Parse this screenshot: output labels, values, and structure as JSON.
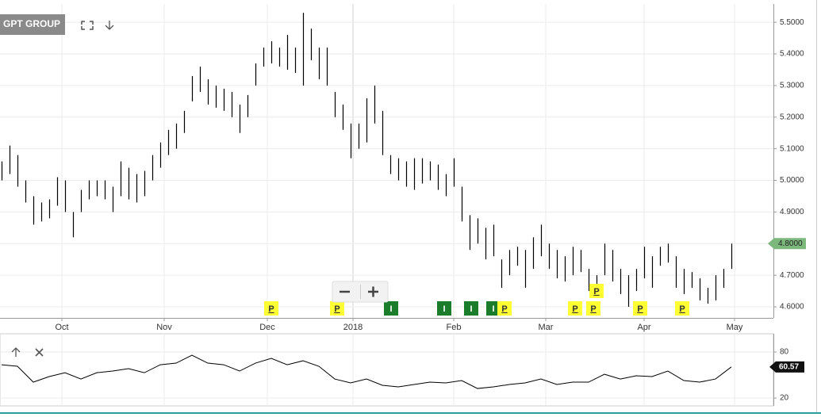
{
  "chart_data": [
    {
      "type": "ohlc",
      "title": "GPT GROUP",
      "high": [
        5.06,
        5.11,
        5.08,
        5.0,
        4.95,
        4.93,
        4.94,
        5.01,
        5.0,
        4.9,
        4.97,
        5.0,
        5.0,
        5.0,
        4.98,
        5.06,
        5.04,
        5.02,
        5.03,
        5.08,
        5.12,
        5.16,
        5.18,
        5.22,
        5.33,
        5.36,
        5.32,
        5.3,
        5.29,
        5.28,
        5.24,
        5.27,
        5.37,
        5.42,
        5.44,
        5.42,
        5.46,
        5.42,
        5.53,
        5.48,
        5.42,
        5.42,
        5.28,
        5.24,
        5.18,
        5.18,
        5.26,
        5.3,
        5.22,
        5.08,
        5.07,
        5.06,
        5.07,
        5.07,
        5.06,
        5.05,
        5.02,
        5.07,
        4.98,
        4.89,
        4.88,
        4.85,
        4.86,
        4.75,
        4.78,
        4.79,
        4.78,
        4.82,
        4.86,
        4.8,
        4.78,
        4.76,
        4.79,
        4.78,
        4.72,
        4.7,
        4.8,
        4.78,
        4.72,
        4.7,
        4.72,
        4.79,
        4.76,
        4.79,
        4.8,
        4.76,
        4.72,
        4.71,
        4.69,
        4.66,
        4.7,
        4.72,
        4.8
      ],
      "low": [
        5.0,
        5.02,
        4.98,
        4.93,
        4.86,
        4.87,
        4.88,
        4.92,
        4.9,
        4.82,
        4.9,
        4.94,
        4.95,
        4.94,
        4.9,
        4.95,
        4.94,
        4.93,
        4.95,
        5.0,
        5.04,
        5.08,
        5.1,
        5.15,
        5.25,
        5.28,
        5.24,
        5.23,
        5.22,
        5.2,
        5.15,
        5.2,
        5.3,
        5.36,
        5.37,
        5.36,
        5.35,
        5.34,
        5.3,
        5.38,
        5.32,
        5.3,
        5.2,
        5.16,
        5.07,
        5.1,
        5.12,
        5.18,
        5.08,
        5.02,
        5.0,
        4.98,
        4.97,
        4.99,
        5.0,
        4.97,
        4.95,
        4.98,
        4.87,
        4.78,
        4.8,
        4.75,
        4.76,
        4.66,
        4.7,
        4.73,
        4.66,
        4.72,
        4.76,
        4.72,
        4.69,
        4.68,
        4.7,
        4.71,
        4.65,
        4.63,
        4.7,
        4.68,
        4.64,
        4.6,
        4.65,
        4.69,
        4.66,
        4.73,
        4.74,
        4.66,
        4.64,
        4.66,
        4.62,
        4.61,
        4.62,
        4.66,
        4.72
      ],
      "xlim": [
        -0.2,
        97.3
      ],
      "xticks": [
        {
          "value": 7.6,
          "label": "Oct"
        },
        {
          "value": 20.5,
          "label": "Nov"
        },
        {
          "value": 33.5,
          "label": "Dec"
        },
        {
          "value": 44.3,
          "label": "2018"
        },
        {
          "value": 57.0,
          "label": "Feb"
        },
        {
          "value": 68.6,
          "label": "Mar"
        },
        {
          "value": 81.0,
          "label": "Apr"
        },
        {
          "value": 92.4,
          "label": "May"
        }
      ],
      "ylim": [
        4.565,
        5.558
      ],
      "yticks": [
        {
          "value": 4.6,
          "label": "4.6000"
        },
        {
          "value": 4.7,
          "label": "4.7000"
        },
        {
          "value": 4.8,
          "label": "4.8000"
        },
        {
          "value": 4.9,
          "label": "4.9000"
        },
        {
          "value": 5.0,
          "label": "5.0000"
        },
        {
          "value": 5.1,
          "label": "5.1000"
        },
        {
          "value": 5.2,
          "label": "5.2000"
        },
        {
          "value": 5.3,
          "label": "5.3000"
        },
        {
          "value": 5.4,
          "label": "5.4000"
        },
        {
          "value": 5.5,
          "label": "5.5000"
        }
      ],
      "last_price": {
        "value": 4.8,
        "label": "4.8000"
      },
      "color": "#000000",
      "grid": true,
      "events": [
        {
          "label": "P",
          "x": 34,
          "color": "#ffff33"
        },
        {
          "label": "P",
          "x": 42.3,
          "color": "#ffff33"
        },
        {
          "label": "I",
          "x": 49.1,
          "color": "#1b7d2c"
        },
        {
          "label": "I",
          "x": 55.8,
          "color": "#1b7d2c"
        },
        {
          "label": "I",
          "x": 59.2,
          "color": "#1b7d2c"
        },
        {
          "label": "I",
          "x": 62,
          "color": "#1b7d2c"
        },
        {
          "label": "P",
          "x": 63.4,
          "color": "#ffff33"
        },
        {
          "label": "P",
          "x": 72.3,
          "color": "#ffff33"
        },
        {
          "label": "P",
          "x": 74.6,
          "color": "#ffff33"
        },
        {
          "label": "P",
          "x": 75,
          "color": "#ffff33"
        },
        {
          "label": "P",
          "x": 80.5,
          "color": "#ffff33"
        },
        {
          "label": "P",
          "x": 85.8,
          "color": "#ffff33"
        }
      ]
    },
    {
      "type": "line",
      "x": [
        0,
        2,
        4,
        6,
        8,
        10,
        12,
        14,
        16,
        18,
        20,
        22,
        24,
        26,
        28,
        30,
        32,
        34,
        36,
        38,
        40,
        42,
        44,
        46,
        48,
        50,
        52,
        54,
        56,
        58,
        60,
        62,
        64,
        66,
        68,
        70,
        72,
        74,
        76,
        78,
        80,
        82,
        84,
        86,
        88,
        90,
        92
      ],
      "values": [
        63.4,
        61.4,
        40.7,
        48,
        53,
        44.8,
        53,
        55.2,
        58.3,
        53,
        63.4,
        65.5,
        75.9,
        65.5,
        63.4,
        55.2,
        65.5,
        71.7,
        63.4,
        68.6,
        61.4,
        44.8,
        39.7,
        44.8,
        36.6,
        34.5,
        37.6,
        40.7,
        39.7,
        42.8,
        32.4,
        34.5,
        37.6,
        39.7,
        44.8,
        37.6,
        40.7,
        40.7,
        51,
        44.8,
        49,
        48,
        55.2,
        42.8,
        40.7,
        44.8,
        60.57
      ],
      "xlim": [
        -0.2,
        97.3
      ],
      "ylim": [
        9.7,
        102.8
      ],
      "yticks": [
        20,
        80
      ],
      "last_value": 60.57,
      "color": "#000000"
    }
  ]
}
